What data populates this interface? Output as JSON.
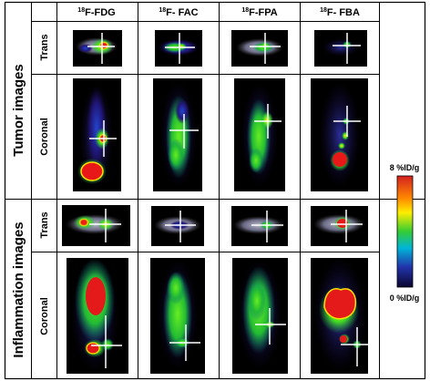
{
  "columns": [
    {
      "iso": "18",
      "name": "F-FDG"
    },
    {
      "iso": "18",
      "name": "F- FAC"
    },
    {
      "iso": "18",
      "name": "F-FPA"
    },
    {
      "iso": "18",
      "name": "F- FBA"
    }
  ],
  "groups": [
    {
      "label": "Tumor images",
      "rows": [
        "Trans",
        "Coronal"
      ]
    },
    {
      "label": "Inflammation images",
      "rows": [
        "Trans",
        "Coronal"
      ]
    }
  ],
  "colorbar": {
    "max_label": "8 %ID/g",
    "min_label": "0 %ID/g",
    "colors": [
      "#d42020",
      "#ff8800",
      "#ffee00",
      "#33cc33",
      "#00b4d8",
      "#2233aa",
      "#0b0530"
    ]
  }
}
